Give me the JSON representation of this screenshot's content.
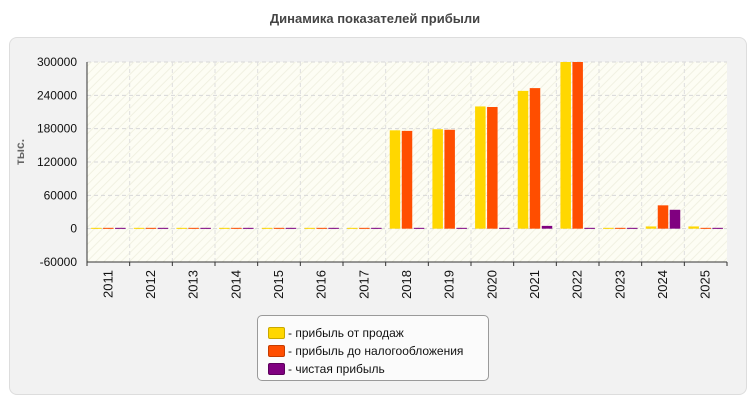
{
  "chart_data": {
    "type": "bar",
    "title": "Динамика показателей прибыли",
    "ylabel": "тыс.",
    "xlabel": "",
    "ylim": [
      -60000,
      300000
    ],
    "yticks": [
      "300000",
      "240000",
      "180000",
      "120000",
      "60000",
      "0",
      "-60000"
    ],
    "categories": [
      "2011",
      "2012",
      "2013",
      "2014",
      "2015",
      "2016",
      "2017",
      "2018",
      "2019",
      "2020",
      "2021",
      "2022",
      "2023",
      "2024",
      "2025"
    ],
    "series": [
      {
        "name": "прибыль от продаж",
        "color": "#ffd700",
        "values": [
          1500,
          1500,
          1500,
          1500,
          1500,
          1500,
          1500,
          177000,
          179000,
          220000,
          248000,
          300000,
          1500,
          4000,
          4000
        ]
      },
      {
        "name": "прибыль до налогообложения",
        "color": "#ff4e00",
        "values": [
          1500,
          1500,
          1500,
          1500,
          1500,
          1500,
          1500,
          176000,
          178000,
          219000,
          253000,
          300000,
          1500,
          42000,
          1500
        ]
      },
      {
        "name": "чистая прибыль",
        "color": "#800080",
        "values": [
          1500,
          1500,
          1500,
          1500,
          1500,
          1500,
          1500,
          1500,
          1500,
          1500,
          5000,
          1500,
          1500,
          34000,
          1500
        ]
      }
    ],
    "grid": true,
    "legend_position": "bottom-center"
  }
}
